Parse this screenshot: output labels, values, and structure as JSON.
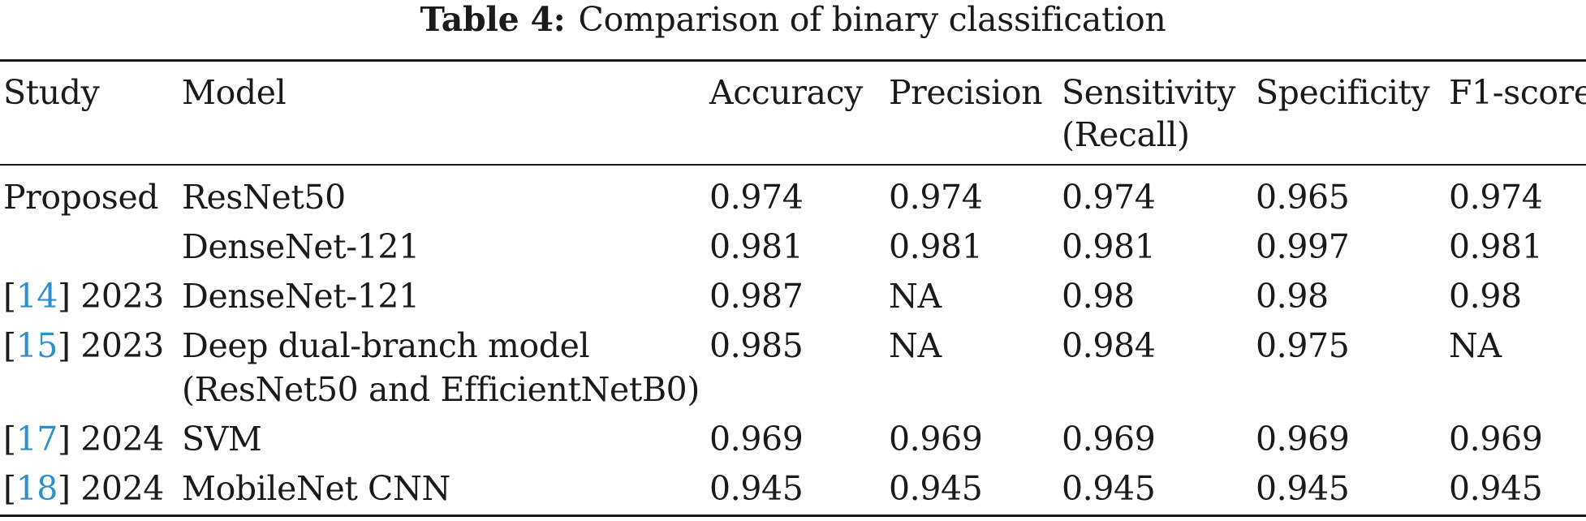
{
  "caption": {
    "label": "Table 4:",
    "text": "Comparison of binary classification"
  },
  "columns": [
    "Study",
    "Model",
    "Accuracy",
    "Precision",
    "Sensitivity",
    "Specificity",
    "F1-score"
  ],
  "column_sub": "(Recall)",
  "rows": [
    {
      "study": "Proposed",
      "ref": "",
      "year": "",
      "model": "ResNet50",
      "model2": "",
      "accuracy": "0.974",
      "precision": "0.974",
      "sensitivity": "0.974",
      "specificity": "0.965",
      "f1": "0.974"
    },
    {
      "study": "",
      "ref": "",
      "year": "",
      "model": "DenseNet-121",
      "model2": "",
      "accuracy": "0.981",
      "precision": "0.981",
      "sensitivity": "0.981",
      "specificity": "0.997",
      "f1": "0.981"
    },
    {
      "study": "",
      "ref": "14",
      "year": "2023",
      "model": "DenseNet-121",
      "model2": "",
      "accuracy": "0.987",
      "precision": "NA",
      "sensitivity": "0.98",
      "specificity": "0.98",
      "f1": "0.98"
    },
    {
      "study": "",
      "ref": "15",
      "year": "2023",
      "model": "Deep dual-branch model",
      "model2": "(ResNet50 and EfficientNetB0)",
      "accuracy": "0.985",
      "precision": "NA",
      "sensitivity": "0.984",
      "specificity": "0.975",
      "f1": "NA"
    },
    {
      "study": "",
      "ref": "17",
      "year": "2024",
      "model": "SVM",
      "model2": "",
      "accuracy": "0.969",
      "precision": "0.969",
      "sensitivity": "0.969",
      "specificity": "0.969",
      "f1": "0.969"
    },
    {
      "study": "",
      "ref": "18",
      "year": "2024",
      "model": "MobileNet CNN",
      "model2": "",
      "accuracy": "0.945",
      "precision": "0.945",
      "sensitivity": "0.945",
      "specificity": "0.945",
      "f1": "0.945"
    }
  ],
  "colors": {
    "text": "#1a1a1a",
    "reference_link": "#2e8fc9"
  }
}
